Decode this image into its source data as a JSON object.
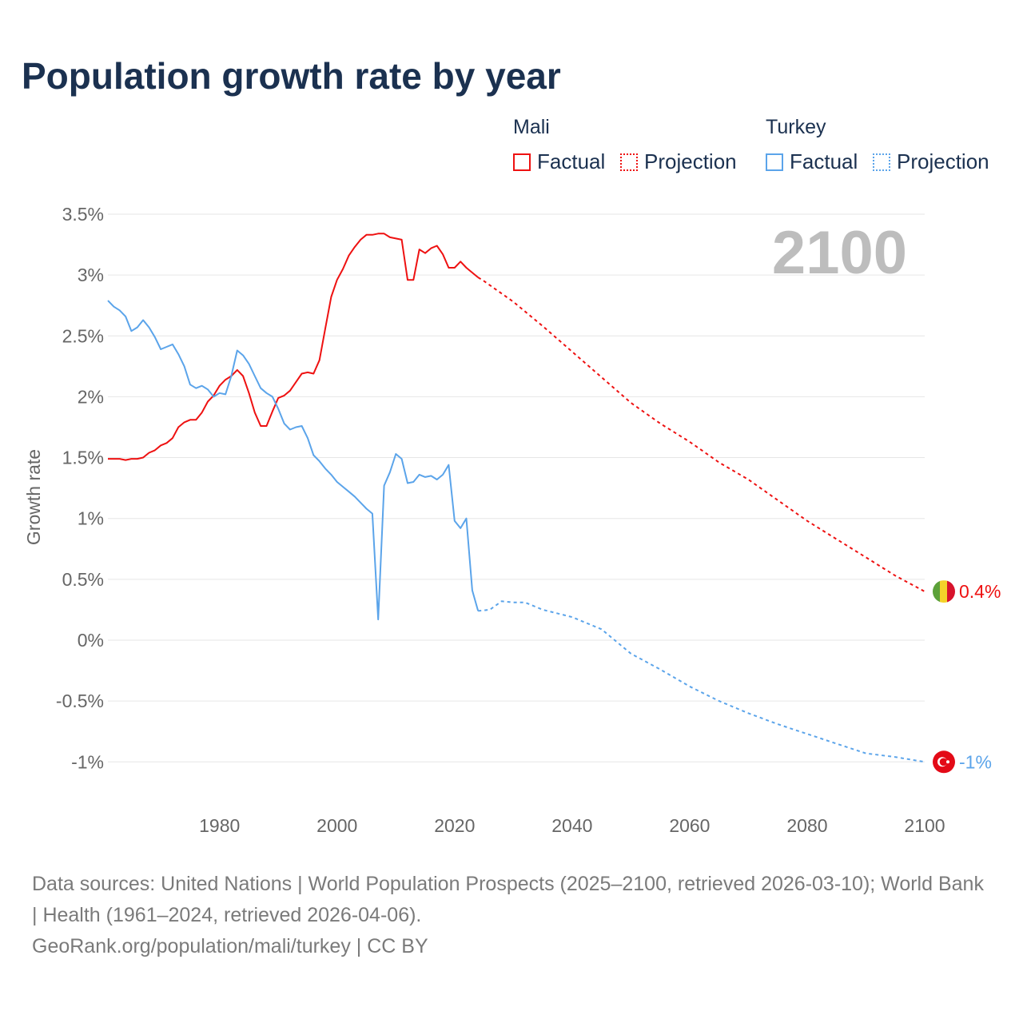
{
  "title": "Population growth rate by year",
  "legend": {
    "groups": [
      {
        "name": "Mali",
        "color": "#ee1111",
        "factual": "Factual",
        "projection": "Projection"
      },
      {
        "name": "Turkey",
        "color": "#5ba4ea",
        "factual": "Factual",
        "projection": "Projection"
      }
    ]
  },
  "year_badge": "2100",
  "footer": {
    "sources": "Data sources: United Nations | World Population Prospects (2025–2100, retrieved 2026-03-10); World Bank | Health (1961–2024, retrieved 2026-04-06).",
    "link": "GeoRank.org/population/mali/turkey | CC BY"
  },
  "chart_data": {
    "type": "line",
    "title": "Population growth rate by year",
    "xlabel": "",
    "ylabel": "Growth rate",
    "xlim": [
      1961,
      2100
    ],
    "ylim": [
      -1.2,
      3.5
    ],
    "x_ticks": [
      1980,
      2000,
      2020,
      2040,
      2060,
      2080,
      2100
    ],
    "y_ticks": [
      {
        "v": 3.5,
        "label": "3.5%"
      },
      {
        "v": 3,
        "label": "3%"
      },
      {
        "v": 2.5,
        "label": "2.5%"
      },
      {
        "v": 2,
        "label": "2%"
      },
      {
        "v": 1.5,
        "label": "1.5%"
      },
      {
        "v": 1,
        "label": "1%"
      },
      {
        "v": 0.5,
        "label": "0.5%"
      },
      {
        "v": 0,
        "label": "0%"
      },
      {
        "v": -0.5,
        "label": "-0.5%"
      },
      {
        "v": -1,
        "label": "-1%"
      }
    ],
    "grid": true,
    "legend_position": "top-right",
    "series": [
      {
        "name": "Mali",
        "kind": "factual",
        "color": "#ee1111",
        "start_year": 1961,
        "values": [
          1.49,
          1.49,
          1.49,
          1.48,
          1.49,
          1.49,
          1.5,
          1.54,
          1.56,
          1.6,
          1.62,
          1.66,
          1.75,
          1.79,
          1.81,
          1.81,
          1.87,
          1.96,
          2.01,
          2.09,
          2.14,
          2.17,
          2.22,
          2.17,
          2.03,
          1.87,
          1.76,
          1.76,
          1.88,
          1.99,
          2.01,
          2.05,
          2.12,
          2.19,
          2.2,
          2.19,
          2.3,
          2.56,
          2.82,
          2.96,
          3.05,
          3.16,
          3.23,
          3.29,
          3.33,
          3.33,
          3.34,
          3.34,
          3.31,
          3.3,
          3.29,
          2.96,
          2.96,
          3.21,
          3.18,
          3.22,
          3.24,
          3.17,
          3.06,
          3.06,
          3.11,
          3.06,
          3.02,
          2.98
        ]
      },
      {
        "name": "Mali",
        "kind": "projection",
        "color": "#ee1111",
        "x": [
          2024,
          2025,
          2030,
          2035,
          2040,
          2045,
          2050,
          2055,
          2060,
          2065,
          2070,
          2075,
          2080,
          2085,
          2090,
          2095,
          2100
        ],
        "values": [
          2.98,
          2.95,
          2.78,
          2.58,
          2.37,
          2.16,
          1.95,
          1.78,
          1.63,
          1.46,
          1.32,
          1.15,
          0.98,
          0.83,
          0.68,
          0.53,
          0.4
        ]
      },
      {
        "name": "Turkey",
        "kind": "factual",
        "color": "#5ba4ea",
        "start_year": 1961,
        "values": [
          2.79,
          2.74,
          2.71,
          2.66,
          2.54,
          2.57,
          2.63,
          2.57,
          2.49,
          2.39,
          2.41,
          2.43,
          2.35,
          2.25,
          2.1,
          2.07,
          2.09,
          2.06,
          2.0,
          2.03,
          2.02,
          2.17,
          2.38,
          2.34,
          2.27,
          2.17,
          2.07,
          2.03,
          2.0,
          1.9,
          1.78,
          1.73,
          1.75,
          1.76,
          1.66,
          1.52,
          1.47,
          1.41,
          1.36,
          1.3,
          1.26,
          1.22,
          1.18,
          1.13,
          1.08,
          1.04,
          0.17,
          1.27,
          1.38,
          1.53,
          1.49,
          1.29,
          1.3,
          1.36,
          1.34,
          1.35,
          1.32,
          1.36,
          1.44,
          0.98,
          0.92,
          1.0,
          0.41,
          0.24
        ]
      },
      {
        "name": "Turkey",
        "kind": "projection",
        "color": "#5ba4ea",
        "x": [
          2024,
          2026,
          2028,
          2030,
          2032,
          2035,
          2040,
          2045,
          2050,
          2055,
          2060,
          2065,
          2070,
          2075,
          2080,
          2085,
          2090,
          2095,
          2100
        ],
        "values": [
          0.24,
          0.25,
          0.32,
          0.31,
          0.31,
          0.25,
          0.19,
          0.09,
          -0.11,
          -0.24,
          -0.38,
          -0.5,
          -0.6,
          -0.69,
          -0.77,
          -0.85,
          -0.93,
          -0.96,
          -1.0
        ]
      }
    ],
    "end_labels": [
      {
        "name": "Mali",
        "label": "0.4%",
        "value": 0.4,
        "color": "#ee1111",
        "flag": "mali-flag"
      },
      {
        "name": "Turkey",
        "label": "-1%",
        "value": -1.0,
        "color": "#5ba4ea",
        "flag": "turkey-flag"
      }
    ]
  }
}
